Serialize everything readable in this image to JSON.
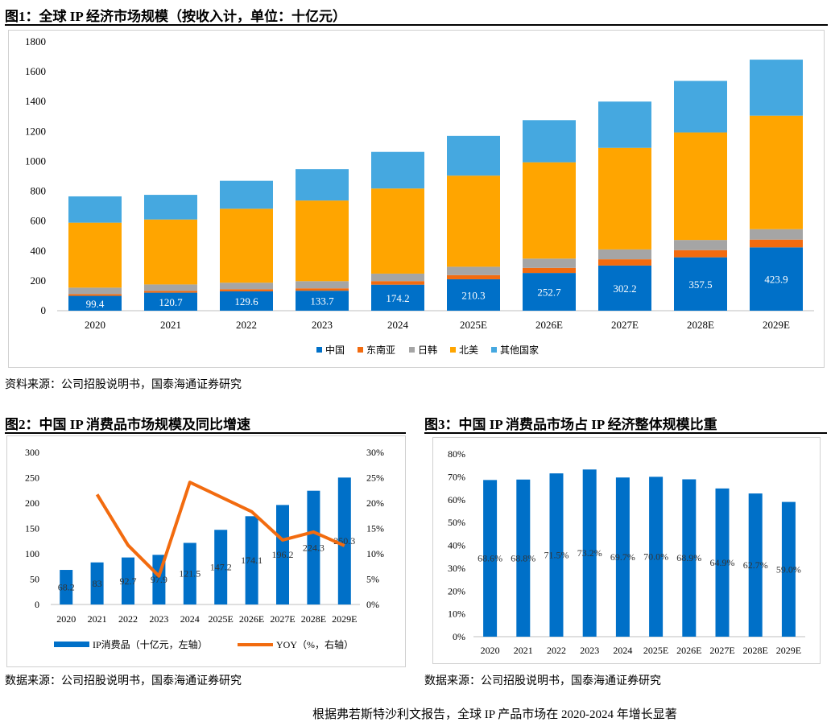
{
  "fig1": {
    "title": "图1：全球 IP 经济市场规模（按收入计，单位：十亿元）",
    "source": "资料来源：公司招股说明书，国泰海通证券研究"
  },
  "fig2": {
    "title": "图2：中国 IP 消费品市场规模及同比增速",
    "source": "数据来源：公司招股说明书，国泰海通证券研究"
  },
  "fig3": {
    "title": "图3：中国 IP 消费品市场占 IP 经济整体规模比重",
    "source": "数据来源：公司招股说明书，国泰海通证券研究"
  },
  "footer_text": "根据弗若斯特沙利文报告，全球 IP 产品市场在 2020-2024 年增长显著",
  "colors": {
    "china": "#0070C8",
    "sea": "#F26B0F",
    "jpkr": "#A5A5A5",
    "na": "#FFA500",
    "other": "#45A8E0",
    "line": "#F26B0F",
    "axis": "#bfbfbf"
  },
  "chart_data": [
    {
      "id": "fig1",
      "type": "bar",
      "stacked": true,
      "categories": [
        "2020",
        "2021",
        "2022",
        "2023",
        "2024",
        "2025E",
        "2026E",
        "2027E",
        "2028E",
        "2029E"
      ],
      "series": [
        {
          "name": "中国",
          "color_key": "china",
          "values": [
            99.4,
            120.7,
            129.6,
            133.7,
            174.2,
            210.3,
            252.7,
            302.2,
            357.5,
            423.9
          ],
          "labels": [
            "99.4",
            "120.7",
            "129.6",
            "133.7",
            "174.2",
            "210.3",
            "252.7",
            "302.2",
            "357.5",
            "423.9"
          ]
        },
        {
          "name": "东南亚",
          "color_key": "sea",
          "values": [
            12,
            12,
            14,
            16,
            24,
            28,
            34,
            42,
            48,
            52
          ]
        },
        {
          "name": "日韩",
          "color_key": "jpkr",
          "values": [
            43,
            43,
            44,
            48,
            50,
            56,
            62,
            66,
            68,
            70
          ]
        },
        {
          "name": "北美",
          "color_key": "na",
          "values": [
            435,
            435,
            495,
            540,
            570,
            610,
            645,
            680,
            720,
            760
          ]
        },
        {
          "name": "其他国家",
          "color_key": "other",
          "values": [
            176,
            165,
            187,
            210,
            245,
            266,
            282,
            310,
            345,
            375
          ]
        }
      ],
      "ylim": [
        0,
        1800
      ],
      "yticks": [
        0,
        200,
        400,
        600,
        800,
        1000,
        1200,
        1400,
        1600,
        1800
      ],
      "legend_position": "bottom"
    },
    {
      "id": "fig2",
      "type": "bar+line",
      "categories": [
        "2020",
        "2021",
        "2022",
        "2023",
        "2024",
        "2025E",
        "2026E",
        "2027E",
        "2028E",
        "2029E"
      ],
      "bars": {
        "name": "IP消费品（十亿元，左轴）",
        "values": [
          68.2,
          83,
          92.7,
          97.9,
          121.5,
          147.2,
          174.1,
          196.2,
          224.3,
          250.3
        ],
        "labels": [
          "68.2",
          "83",
          "92.7",
          "97.9",
          "121.5",
          "147.2",
          "174.1",
          "196.2",
          "224.3",
          "250.3"
        ]
      },
      "line": {
        "name": "YOY（%，右轴）",
        "values": [
          null,
          21.7,
          11.7,
          5.6,
          24.1,
          21.2,
          18.3,
          12.7,
          14.3,
          11.6
        ]
      },
      "ylim_left": [
        0,
        300
      ],
      "yticks_left": [
        0,
        50,
        100,
        150,
        200,
        250,
        300
      ],
      "ylim_right": [
        0,
        30
      ],
      "yticks_right": [
        "0%",
        "5%",
        "10%",
        "15%",
        "20%",
        "25%",
        "30%"
      ],
      "legend_position": "bottom"
    },
    {
      "id": "fig3",
      "type": "bar",
      "categories": [
        "2020",
        "2021",
        "2022",
        "2023",
        "2024",
        "2025E",
        "2026E",
        "2027E",
        "2028E",
        "2029E"
      ],
      "values": [
        68.6,
        68.8,
        71.5,
        73.2,
        69.7,
        70.0,
        68.9,
        64.9,
        62.7,
        59.0
      ],
      "labels": [
        "68.6%",
        "68.8%",
        "71.5%",
        "73.2%",
        "69.7%",
        "70.0%",
        "68.9%",
        "64.9%",
        "62.7%",
        "59.0%"
      ],
      "ylim": [
        0,
        80
      ],
      "yticks": [
        "0%",
        "10%",
        "20%",
        "30%",
        "40%",
        "50%",
        "60%",
        "70%",
        "80%"
      ]
    }
  ]
}
